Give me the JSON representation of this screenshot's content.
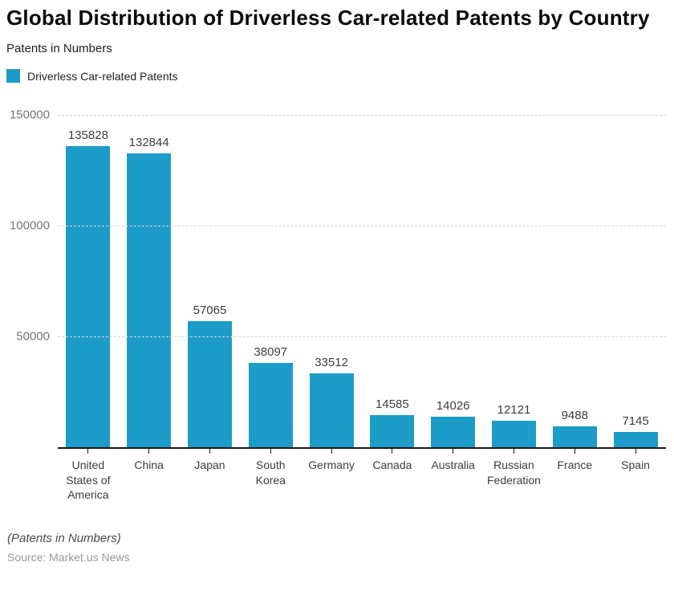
{
  "header": {
    "title": "Global Distribution of Driverless Car-related Patents by Country",
    "subtitle": "Patents in Numbers"
  },
  "legend": {
    "label": "Driverless Car-related Patents",
    "swatch_color": "#1d9bc9"
  },
  "chart_data": {
    "type": "bar",
    "title": "Global Distribution of Driverless Car-related Patents by Country",
    "subtitle": "Patents in Numbers",
    "series_name": "Driverless Car-related Patents",
    "categories": [
      "United States of America",
      "China",
      "Japan",
      "South Korea",
      "Germany",
      "Canada",
      "Australia",
      "Russian Federation",
      "France",
      "Spain"
    ],
    "values": [
      135828,
      132844,
      57065,
      38097,
      33512,
      14585,
      14026,
      12121,
      9488,
      7145
    ],
    "xlabel": "",
    "ylabel": "",
    "ylim": [
      0,
      150000
    ],
    "yticks": [
      50000,
      100000,
      150000
    ],
    "grid": true,
    "legend_position": "top-left",
    "bar_color": "#1d9bc9",
    "value_labels": true
  },
  "footer": {
    "note": "(Patents in Numbers)",
    "source": "Source: Market.us News"
  }
}
